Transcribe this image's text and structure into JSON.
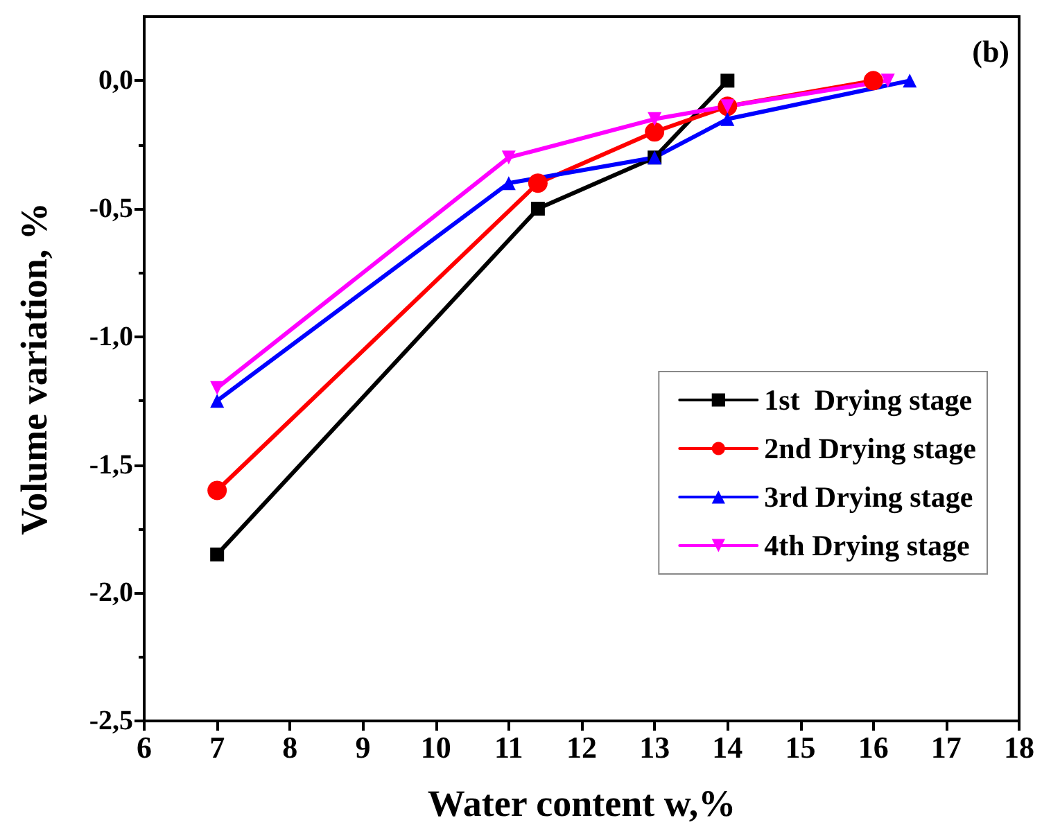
{
  "chart_data": {
    "type": "line",
    "xlabel": "Water content w,%",
    "ylabel": "Volume variation, %",
    "annotations": [
      "(b)"
    ],
    "xlim": [
      6,
      18
    ],
    "xticks": [
      6,
      7,
      8,
      9,
      10,
      11,
      12,
      13,
      14,
      15,
      16,
      17,
      18
    ],
    "ylim": [
      -2.5,
      0.25
    ],
    "yticks": [
      {
        "value": -2.5,
        "label": "-2,5"
      },
      {
        "value": -2,
        "label": "-2,0"
      },
      {
        "value": -1.5,
        "label": "-1,5"
      },
      {
        "value": -1,
        "label": "-1,0"
      },
      {
        "value": -0.5,
        "label": "-0,5"
      },
      {
        "value": 0,
        "label": "0,0"
      }
    ],
    "grid": false,
    "legend": "right",
    "line_style": "solid",
    "series": [
      {
        "name": "1st  Drying stage",
        "color": "#000000",
        "marker": "square",
        "x": [
          7,
          11.4,
          13,
          14
        ],
        "values": [
          -1.85,
          -0.5,
          -0.3,
          0
        ]
      },
      {
        "name": "2nd Drying stage",
        "color": "#ff0000",
        "marker": "circle",
        "x": [
          7,
          11.4,
          13,
          14,
          16
        ],
        "values": [
          -1.6,
          -0.4,
          -0.2,
          -0.1,
          0
        ]
      },
      {
        "name": "3rd Drying stage",
        "color": "#0000ff",
        "marker": "triangle",
        "x": [
          7,
          11,
          13,
          14,
          16.5
        ],
        "values": [
          -1.25,
          -0.4,
          -0.3,
          -0.15,
          0
        ]
      },
      {
        "name": "4th Drying stage",
        "color": "#ff00ff",
        "marker": "triangle-down",
        "x": [
          7,
          11,
          13,
          14,
          16.2
        ],
        "values": [
          -1.2,
          -0.3,
          -0.15,
          -0.1,
          0
        ]
      }
    ]
  }
}
